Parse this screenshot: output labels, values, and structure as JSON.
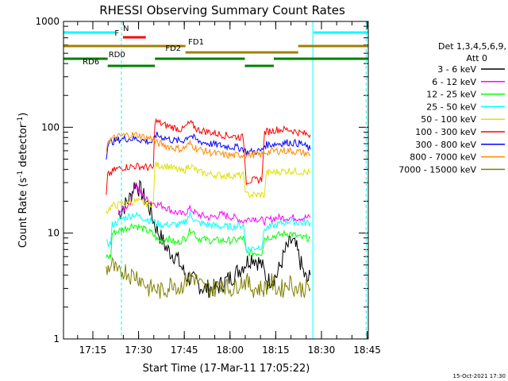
{
  "chart_data": {
    "type": "line",
    "title": "RHESSI Observing Summary Count Rates",
    "xlabel": "Start Time (17-Mar-11 17:05:22)",
    "ylabel_main": "Count Rate (s",
    "ylabel_sup1": "-1",
    "ylabel_mid": " detector",
    "ylabel_sup2": "-1",
    "ylabel_end": ")",
    "yscale": "log",
    "ylim": [
      1,
      1000
    ],
    "xlim_minutes": [
      0,
      100
    ],
    "x_ticks": [
      {
        "label": "17:15",
        "min": 9.63
      },
      {
        "label": "17:30",
        "min": 24.63
      },
      {
        "label": "17:45",
        "min": 39.63
      },
      {
        "label": "18:00",
        "min": 54.63
      },
      {
        "label": "18:15",
        "min": 69.63
      },
      {
        "label": "18:30",
        "min": 84.63
      },
      {
        "label": "18:45",
        "min": 99.63
      }
    ],
    "y_ticks": [
      {
        "label": "1",
        "value": 1
      },
      {
        "label": "10",
        "value": 10
      },
      {
        "label": "100",
        "value": 100
      },
      {
        "label": "1000",
        "value": 1000
      }
    ],
    "legend": {
      "header1": "Det 1,3,4,5,6,9,",
      "header2": "Att 0",
      "placement": "right"
    },
    "series": [
      {
        "name": "3 - 6 keV",
        "color": "#000000",
        "points": [
          [
            18,
            15
          ],
          [
            20,
            18
          ],
          [
            22,
            22
          ],
          [
            23.5,
            30
          ],
          [
            25,
            26
          ],
          [
            28,
            18
          ],
          [
            30,
            12
          ],
          [
            32,
            9
          ],
          [
            34,
            7
          ],
          [
            37,
            6
          ],
          [
            40,
            4
          ],
          [
            43,
            3.5
          ],
          [
            46,
            3
          ],
          [
            50,
            3
          ],
          [
            53,
            3.5
          ],
          [
            56,
            4
          ],
          [
            59,
            5
          ],
          [
            62,
            6
          ],
          [
            65,
            5
          ],
          [
            67,
            3.5
          ],
          [
            70,
            4
          ],
          [
            73,
            7
          ],
          [
            75,
            8.5
          ],
          [
            76.5,
            7
          ],
          [
            78,
            5
          ],
          [
            79,
            4
          ],
          [
            80,
            3.5
          ],
          [
            81,
            4
          ]
        ]
      },
      {
        "name": "6 - 12 keV",
        "color": "#ff00ff",
        "points": [
          [
            18,
            16
          ],
          [
            20,
            17
          ],
          [
            22,
            20
          ],
          [
            23.5,
            30
          ],
          [
            25,
            24
          ],
          [
            27,
            21
          ],
          [
            30,
            19
          ],
          [
            33,
            18
          ],
          [
            36,
            16
          ],
          [
            39,
            15
          ],
          [
            41.5,
            17
          ],
          [
            44,
            15
          ],
          [
            48,
            14
          ],
          [
            52,
            15
          ],
          [
            56,
            14
          ],
          [
            59,
            13
          ],
          [
            62,
            14
          ],
          [
            66,
            13
          ],
          [
            70,
            14
          ],
          [
            74,
            14
          ],
          [
            78,
            14
          ],
          [
            81,
            14
          ]
        ]
      },
      {
        "name": "12 - 25 keV",
        "color": "#00ff00",
        "points": [
          [
            14,
            6
          ],
          [
            15.5,
            6
          ],
          [
            16,
            10
          ],
          [
            20,
            11
          ],
          [
            23,
            12
          ],
          [
            26,
            11
          ],
          [
            29,
            10
          ],
          [
            31,
            8.5
          ],
          [
            34,
            9
          ],
          [
            37,
            8
          ],
          [
            40,
            9
          ],
          [
            42,
            11
          ],
          [
            44,
            9
          ],
          [
            48,
            8.5
          ],
          [
            52,
            8.5
          ],
          [
            56,
            8.5
          ],
          [
            59,
            9
          ],
          [
            60,
            6.5
          ],
          [
            65,
            6.5
          ],
          [
            66,
            9
          ],
          [
            70,
            9.5
          ],
          [
            74,
            10
          ],
          [
            78,
            9
          ],
          [
            81,
            9
          ]
        ]
      },
      {
        "name": "25 - 50 keV",
        "color": "#00ffff",
        "points": [
          [
            14,
            8
          ],
          [
            15.5,
            8
          ],
          [
            16,
            12
          ],
          [
            20,
            14
          ],
          [
            23,
            15
          ],
          [
            26,
            14
          ],
          [
            29,
            13
          ],
          [
            32,
            12
          ],
          [
            36,
            12
          ],
          [
            39,
            12
          ],
          [
            41.5,
            15
          ],
          [
            44,
            12.5
          ],
          [
            48,
            12
          ],
          [
            52,
            11.5
          ],
          [
            56,
            11.5
          ],
          [
            59,
            12
          ],
          [
            60,
            7
          ],
          [
            65,
            7.5
          ],
          [
            66,
            11
          ],
          [
            70,
            12
          ],
          [
            74,
            13
          ],
          [
            78,
            12.5
          ],
          [
            81,
            12.5
          ]
        ]
      },
      {
        "name": "50 - 100 keV",
        "color": "#e0e000",
        "points": [
          [
            14,
            16
          ],
          [
            16,
            18
          ],
          [
            20,
            19
          ],
          [
            24,
            20
          ],
          [
            27,
            19
          ],
          [
            29.5,
            19
          ],
          [
            30,
            44
          ],
          [
            34,
            43
          ],
          [
            37,
            40
          ],
          [
            39,
            38
          ],
          [
            41.5,
            44
          ],
          [
            44,
            38
          ],
          [
            48,
            36
          ],
          [
            52,
            35
          ],
          [
            56,
            35
          ],
          [
            59,
            35
          ],
          [
            60,
            23
          ],
          [
            66,
            23
          ],
          [
            66.5,
            37
          ],
          [
            70,
            38
          ],
          [
            74,
            39
          ],
          [
            78,
            38
          ],
          [
            81,
            37
          ]
        ]
      },
      {
        "name": "100 - 300 keV",
        "color": "#ff0000",
        "points": [
          [
            14,
            22
          ],
          [
            14.5,
            35
          ],
          [
            17,
            40
          ],
          [
            20,
            42
          ],
          [
            24,
            43
          ],
          [
            27,
            42
          ],
          [
            29.5,
            41
          ],
          [
            30,
            115
          ],
          [
            33,
            105
          ],
          [
            36,
            100
          ],
          [
            39,
            95
          ],
          [
            41.5,
            110
          ],
          [
            44,
            95
          ],
          [
            48,
            90
          ],
          [
            52,
            85
          ],
          [
            56,
            82
          ],
          [
            59,
            80
          ],
          [
            60,
            31
          ],
          [
            65,
            32
          ],
          [
            66,
            90
          ],
          [
            70,
            95
          ],
          [
            74,
            95
          ],
          [
            78,
            88
          ],
          [
            81,
            85
          ]
        ]
      },
      {
        "name": "300 - 800 keV",
        "color": "#0000ff",
        "points": [
          [
            14,
            50
          ],
          [
            14.5,
            70
          ],
          [
            17,
            75
          ],
          [
            20,
            78
          ],
          [
            24,
            78
          ],
          [
            27,
            74
          ],
          [
            29.5,
            72
          ],
          [
            30,
            85
          ],
          [
            33,
            80
          ],
          [
            36,
            75
          ],
          [
            39,
            74
          ],
          [
            41.5,
            85
          ],
          [
            44,
            74
          ],
          [
            48,
            70
          ],
          [
            52,
            67
          ],
          [
            56,
            65
          ],
          [
            59,
            63
          ],
          [
            60,
            58
          ],
          [
            65,
            60
          ],
          [
            66,
            68
          ],
          [
            70,
            70
          ],
          [
            74,
            72
          ],
          [
            78,
            70
          ],
          [
            81,
            62
          ]
        ]
      },
      {
        "name": "800 - 7000 keV",
        "color": "#ff8800",
        "points": [
          [
            14,
            55
          ],
          [
            14.5,
            75
          ],
          [
            17,
            80
          ],
          [
            20,
            84
          ],
          [
            24,
            85
          ],
          [
            27,
            80
          ],
          [
            29.5,
            78
          ],
          [
            30,
            72
          ],
          [
            33,
            68
          ],
          [
            36,
            64
          ],
          [
            39,
            62
          ],
          [
            41.5,
            70
          ],
          [
            44,
            62
          ],
          [
            48,
            58
          ],
          [
            52,
            55
          ],
          [
            56,
            54
          ],
          [
            59,
            55
          ],
          [
            60,
            55
          ],
          [
            65,
            55
          ],
          [
            66,
            58
          ],
          [
            70,
            60
          ],
          [
            74,
            60
          ],
          [
            78,
            58
          ],
          [
            81,
            55
          ]
        ]
      },
      {
        "name": "7000 - 15000 keV",
        "color": "#808000",
        "points": [
          [
            14,
            4.5
          ],
          [
            16,
            5
          ],
          [
            18,
            4
          ],
          [
            20,
            4.5
          ],
          [
            22,
            4
          ],
          [
            24,
            4
          ],
          [
            26,
            3.5
          ],
          [
            28,
            3
          ],
          [
            30,
            3
          ],
          [
            32,
            2.8
          ],
          [
            34,
            3
          ],
          [
            36,
            3.5
          ],
          [
            38,
            3
          ],
          [
            40,
            3.5
          ],
          [
            42,
            4
          ],
          [
            44,
            3.5
          ],
          [
            46,
            3
          ],
          [
            48,
            3
          ],
          [
            50,
            3
          ],
          [
            52,
            3.5
          ],
          [
            54,
            3
          ],
          [
            56,
            3
          ],
          [
            58,
            3.5
          ],
          [
            60,
            3.5
          ],
          [
            62,
            3
          ],
          [
            64,
            3
          ],
          [
            66,
            3
          ],
          [
            68,
            3.5
          ],
          [
            70,
            3
          ],
          [
            72,
            3
          ],
          [
            74,
            3.5
          ],
          [
            76,
            3
          ],
          [
            78,
            3
          ],
          [
            80,
            3
          ],
          [
            81,
            3
          ]
        ]
      }
    ],
    "vlines": [
      {
        "min": 0,
        "style": "solid",
        "color": "#00ffff"
      },
      {
        "min": 19,
        "style": "dashed",
        "color": "#00ffff"
      },
      {
        "min": 81.8,
        "style": "solid",
        "color": "#00ffff"
      },
      {
        "min": 99.3,
        "style": "dashed",
        "color": "#00ffff"
      }
    ],
    "state_bars": [
      {
        "label": "N",
        "color": "#00ffff",
        "rank": 0,
        "segments": [
          [
            0,
            17
          ],
          [
            82,
            100
          ]
        ],
        "label_at_min": 20.5
      },
      {
        "label": "F",
        "color": "#ff0000",
        "rank": 1,
        "segments": [
          [
            19.5,
            27
          ]
        ],
        "label_at_min": 17.5
      },
      {
        "label": "FD1",
        "color": "#a08000",
        "rank": 2,
        "segments": [
          [
            0,
            40
          ],
          [
            77,
            100
          ]
        ],
        "label_at_min": 43.5
      },
      {
        "label": "FD2",
        "color": "#a08000",
        "rank": 3,
        "segments": [
          [
            40,
            77
          ]
        ],
        "label_at_min": 36
      },
      {
        "label": "RD0",
        "color": "#008000",
        "rank": 4,
        "segments": [
          [
            0,
            14.5
          ],
          [
            30,
            59.5
          ],
          [
            69,
            100
          ]
        ],
        "label_at_min": 17.5
      },
      {
        "label": "RD6",
        "color": "#008000",
        "rank": 5,
        "segments": [
          [
            14.5,
            30
          ],
          [
            59.5,
            69
          ]
        ],
        "label_at_min": 9
      }
    ]
  },
  "footer": {
    "date": "15-Oct-2021 17:30"
  }
}
